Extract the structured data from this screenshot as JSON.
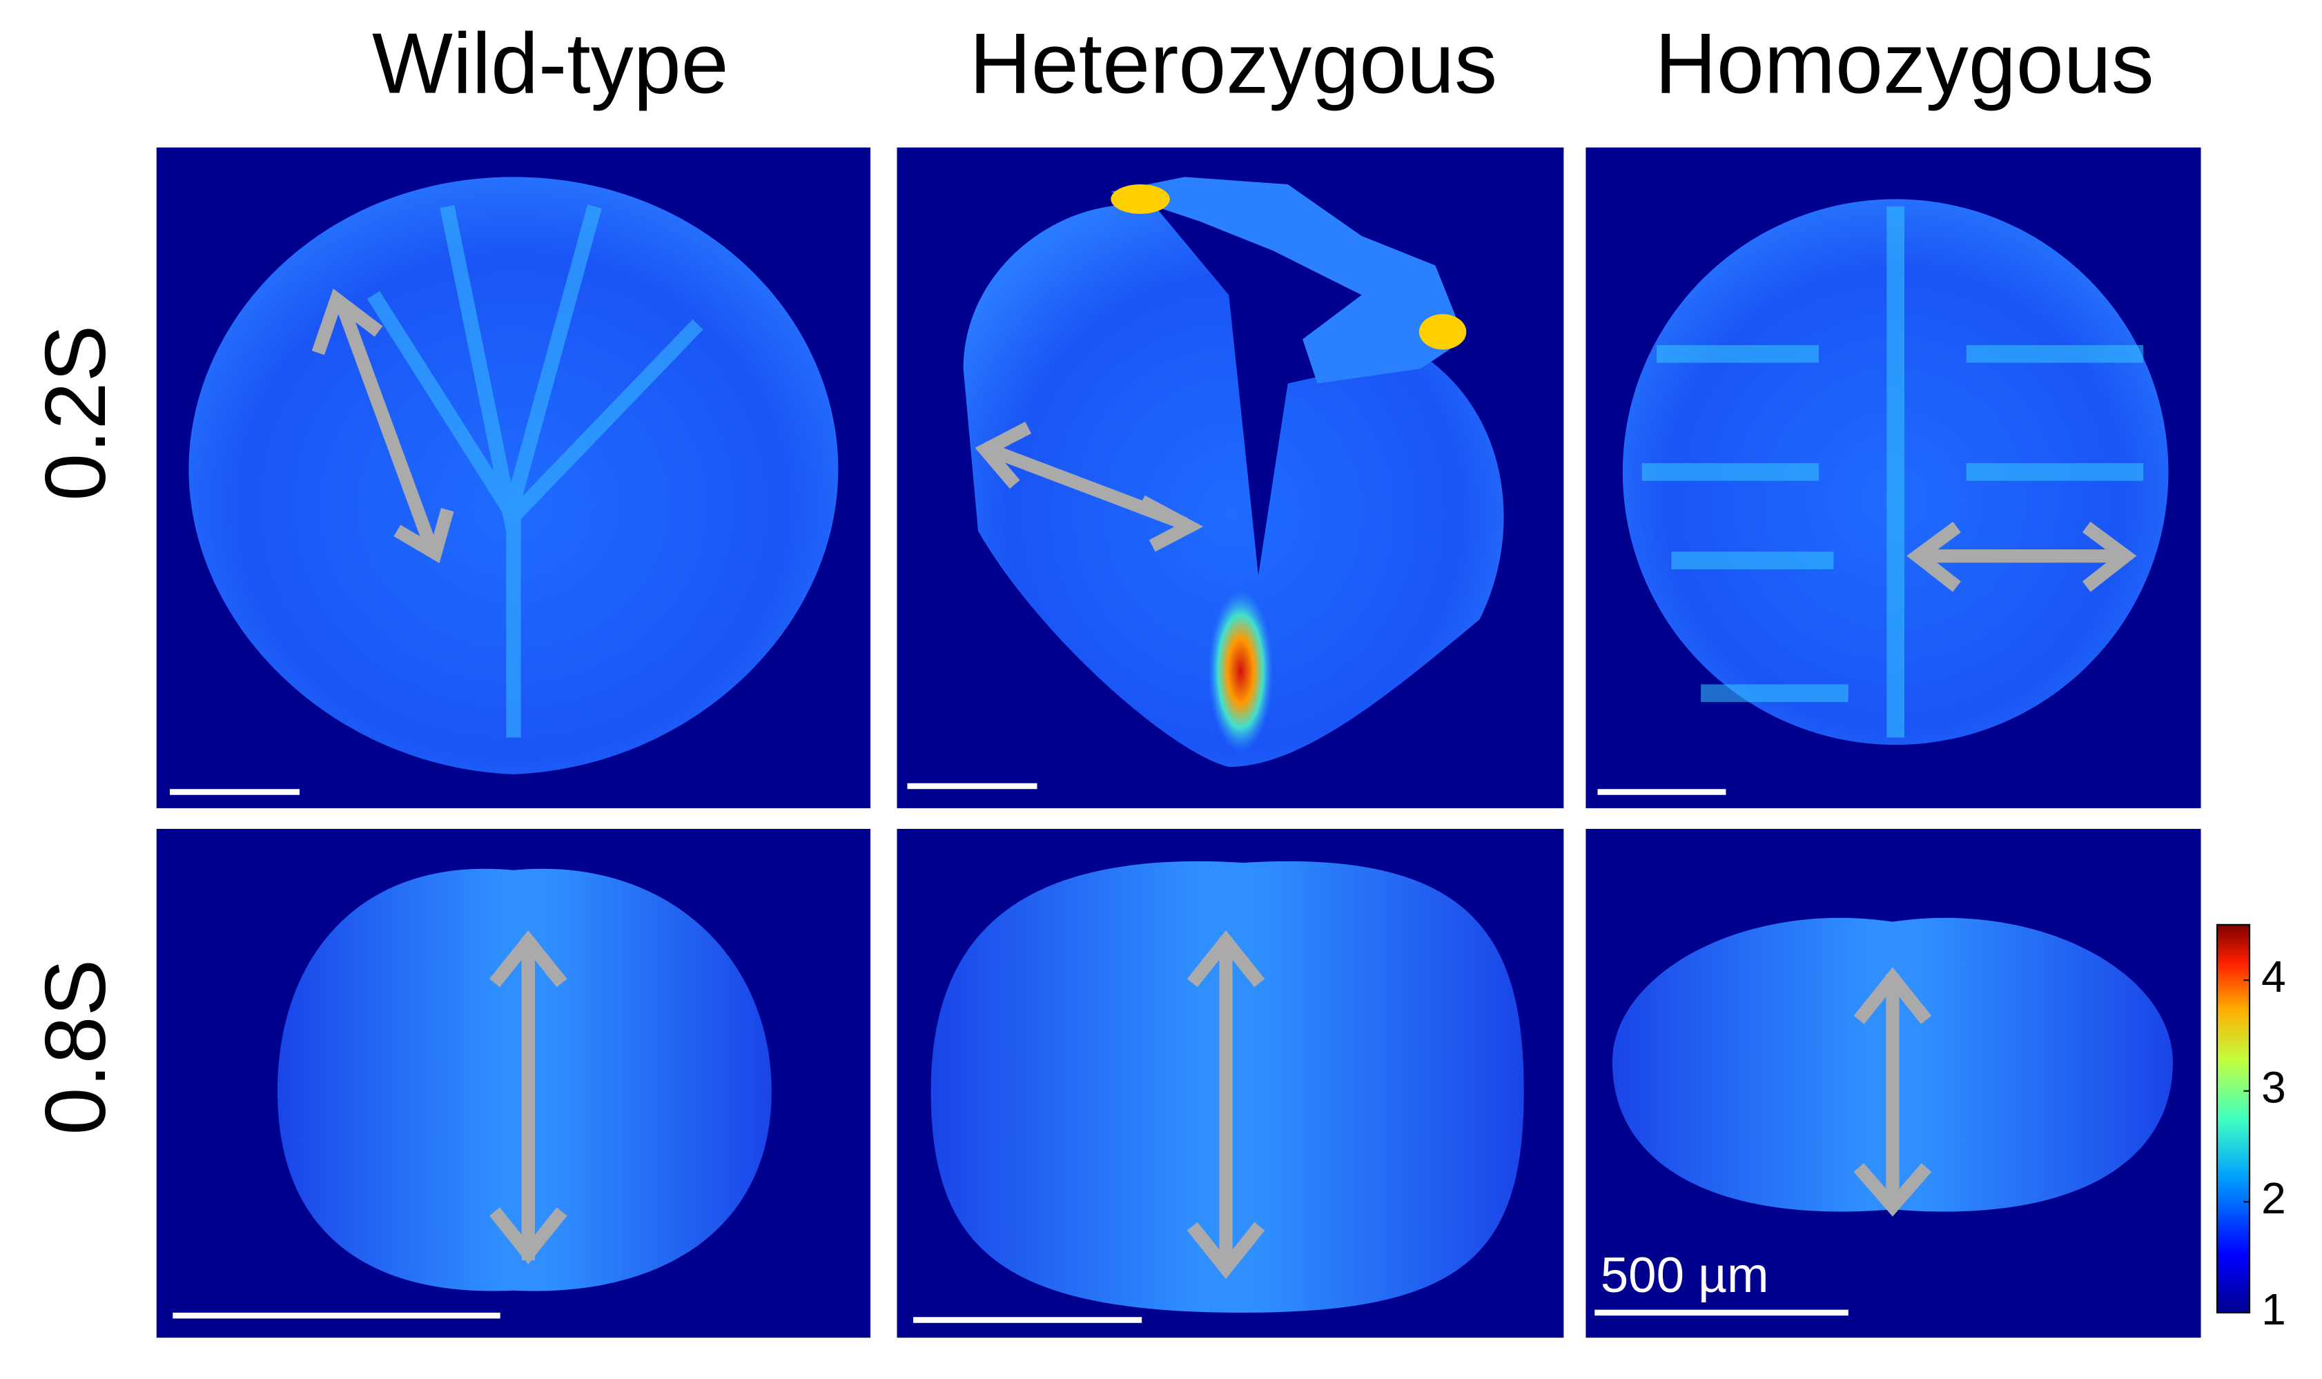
{
  "header": {
    "columns": [
      "Wild-type",
      "Heterozygous",
      "Homozygous"
    ]
  },
  "rows": [
    "0.2S",
    "0.8S"
  ],
  "scale_bar": {
    "label": "500 µm"
  },
  "colorbar": {
    "lim": [
      1,
      4.5
    ],
    "ticks": [
      1,
      2,
      3,
      4
    ]
  }
}
